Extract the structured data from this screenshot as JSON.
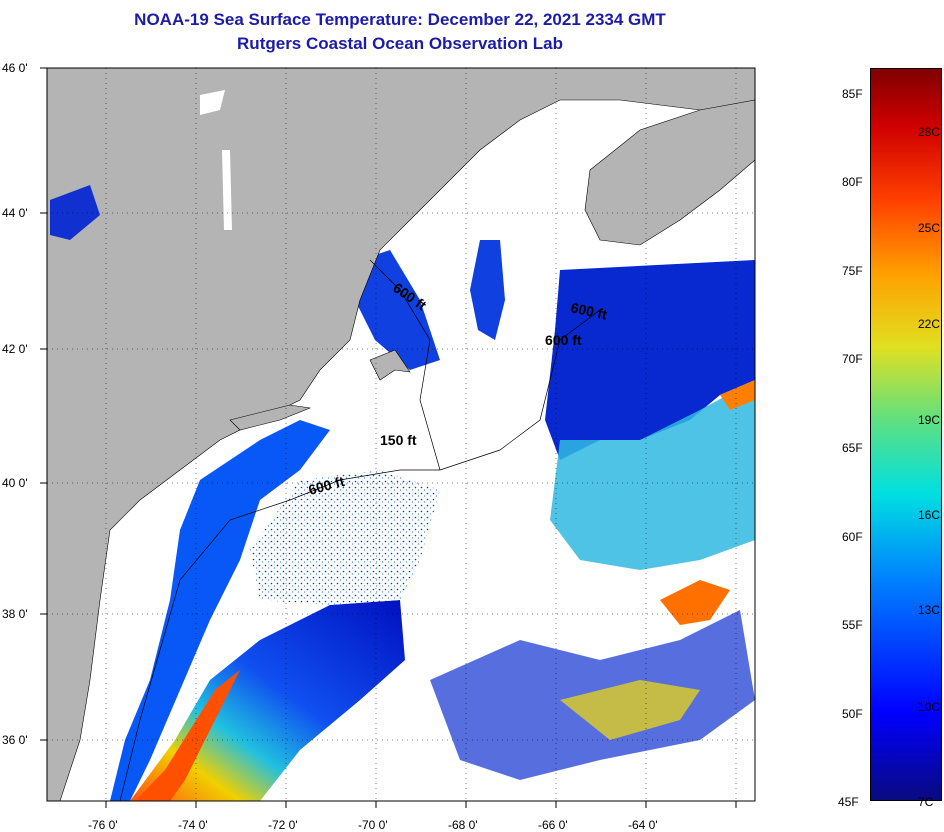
{
  "header": {
    "title": "NOAA-19 Sea Surface Temperature:  December 22, 2021 2334 GMT",
    "subtitle": "Rutgers Coastal Ocean Observation Lab"
  },
  "axes": {
    "latitude_labels": [
      "46 0'",
      "44 0'",
      "42 0'",
      "40 0'",
      "38 0'",
      "36 0'"
    ],
    "longitude_labels": [
      "-76 0'",
      "-74 0'",
      "-72 0'",
      "-70 0'",
      "-68 0'",
      "-66 0'",
      "-64 0'"
    ]
  },
  "depth_contours": [
    {
      "label": "600 ft"
    },
    {
      "label": "600 ft"
    },
    {
      "label": "600 ft"
    },
    {
      "label": "150 ft"
    },
    {
      "label": "600 ft"
    }
  ],
  "colorbar": {
    "fahrenheit": [
      "85F",
      "80F",
      "75F",
      "70F",
      "65F",
      "60F",
      "55F",
      "50F",
      "45F"
    ],
    "celsius": [
      "28C",
      "25C",
      "22C",
      "19C",
      "16C",
      "13C",
      "10C",
      "7C"
    ],
    "range_f": [
      45,
      86
    ],
    "colors": [
      "#0a0a80",
      "#0000ff",
      "#0080ff",
      "#00e0e0",
      "#e0e020",
      "#ff4000",
      "#800000"
    ]
  },
  "colors": {
    "land": "#b4b4b4",
    "cloud": "#ffffff",
    "title": "#1c1ca8"
  }
}
